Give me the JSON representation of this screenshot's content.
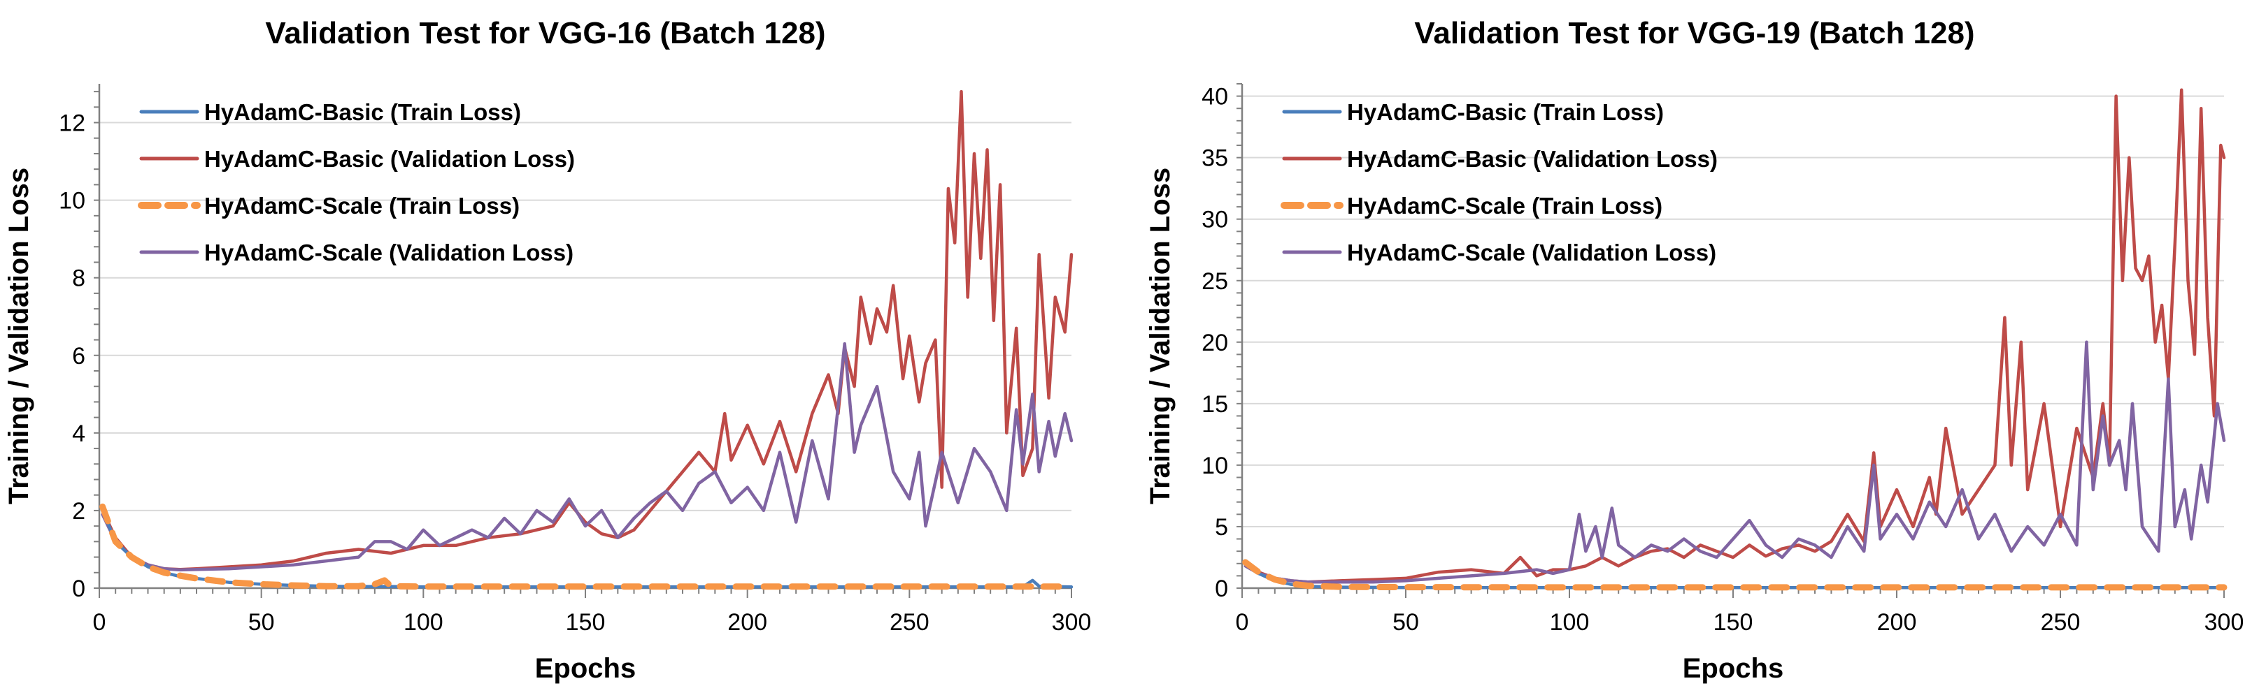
{
  "chart_data": [
    {
      "type": "line",
      "title": "Validation Test for VGG-16 (Batch 128)",
      "xlabel": "Epochs",
      "ylabel": "Training / Validation Loss",
      "xlim": [
        0,
        300
      ],
      "ylim": [
        0,
        13
      ],
      "xticks": [
        0,
        50,
        100,
        150,
        200,
        250,
        300
      ],
      "yticks": [
        0,
        2,
        4,
        6,
        8,
        10,
        12
      ],
      "xtick_labels": [
        "0",
        "50",
        "100",
        "150",
        "200",
        "250",
        "300"
      ],
      "ytick_labels": [
        "0",
        "2",
        "4",
        "6",
        "8",
        "10",
        "12"
      ],
      "grid": true,
      "legend_position": "top-left",
      "series": [
        {
          "name": "HyAdamC-Basic (Train Loss)",
          "color": "#4a7ebb",
          "style": "solid",
          "x": [
            1,
            5,
            10,
            15,
            20,
            25,
            30,
            40,
            50,
            60,
            70,
            80,
            90,
            100,
            150,
            200,
            250,
            285,
            288,
            290,
            300
          ],
          "y": [
            2.0,
            1.2,
            0.8,
            0.55,
            0.4,
            0.3,
            0.25,
            0.15,
            0.1,
            0.07,
            0.05,
            0.04,
            0.04,
            0.03,
            0.03,
            0.03,
            0.03,
            0.03,
            0.2,
            0.05,
            0.03
          ]
        },
        {
          "name": "HyAdamC-Basic (Validation Loss)",
          "color": "#be4b48",
          "style": "solid",
          "x": [
            1,
            5,
            10,
            15,
            20,
            25,
            30,
            40,
            50,
            60,
            70,
            80,
            90,
            100,
            110,
            120,
            130,
            140,
            145,
            150,
            155,
            160,
            165,
            170,
            175,
            180,
            185,
            190,
            193,
            195,
            200,
            205,
            210,
            215,
            220,
            225,
            228,
            230,
            233,
            235,
            238,
            240,
            243,
            245,
            248,
            250,
            253,
            255,
            258,
            260,
            262,
            264,
            266,
            268,
            270,
            272,
            274,
            276,
            278,
            280,
            283,
            285,
            288,
            290,
            293,
            295,
            298,
            300
          ],
          "y": [
            2.0,
            1.3,
            0.8,
            0.6,
            0.5,
            0.48,
            0.5,
            0.55,
            0.6,
            0.7,
            0.9,
            1.0,
            0.9,
            1.1,
            1.1,
            1.3,
            1.4,
            1.6,
            2.2,
            1.7,
            1.4,
            1.3,
            1.5,
            2.0,
            2.5,
            3.0,
            3.5,
            3.0,
            4.5,
            3.3,
            4.2,
            3.2,
            4.3,
            3.0,
            4.5,
            5.5,
            4.5,
            6.2,
            5.2,
            7.5,
            6.3,
            7.2,
            6.6,
            7.8,
            5.4,
            6.5,
            4.8,
            5.8,
            6.4,
            2.6,
            10.3,
            8.9,
            12.8,
            7.5,
            11.2,
            8.5,
            11.3,
            6.9,
            10.4,
            4.0,
            6.7,
            2.9,
            3.6,
            8.6,
            4.9,
            7.5,
            6.6,
            8.6
          ]
        },
        {
          "name": "HyAdamC-Scale (Train Loss)",
          "color": "#f79646",
          "style": "dashed",
          "x": [
            1,
            5,
            10,
            15,
            20,
            25,
            30,
            40,
            50,
            60,
            70,
            80,
            85,
            88,
            90,
            100,
            150,
            200,
            250,
            300
          ],
          "y": [
            2.1,
            1.2,
            0.8,
            0.55,
            0.4,
            0.32,
            0.25,
            0.15,
            0.1,
            0.07,
            0.05,
            0.05,
            0.1,
            0.2,
            0.05,
            0.04,
            0.04,
            0.04,
            0.04,
            0.04
          ]
        },
        {
          "name": "HyAdamC-Scale (Validation Loss)",
          "color": "#8064a2",
          "style": "solid",
          "x": [
            1,
            5,
            10,
            15,
            20,
            25,
            30,
            40,
            50,
            60,
            70,
            80,
            85,
            90,
            95,
            100,
            105,
            110,
            115,
            120,
            125,
            130,
            135,
            140,
            145,
            150,
            155,
            160,
            165,
            170,
            175,
            180,
            185,
            190,
            195,
            200,
            205,
            210,
            215,
            220,
            225,
            230,
            233,
            235,
            240,
            245,
            250,
            253,
            255,
            260,
            265,
            270,
            275,
            280,
            283,
            285,
            288,
            290,
            293,
            295,
            298,
            300
          ],
          "y": [
            1.9,
            1.2,
            0.8,
            0.6,
            0.5,
            0.47,
            0.48,
            0.5,
            0.55,
            0.6,
            0.7,
            0.8,
            1.2,
            1.2,
            1.0,
            1.5,
            1.1,
            1.3,
            1.5,
            1.3,
            1.8,
            1.4,
            2.0,
            1.7,
            2.3,
            1.6,
            2.0,
            1.3,
            1.8,
            2.2,
            2.5,
            2.0,
            2.7,
            3.0,
            2.2,
            2.6,
            2.0,
            3.5,
            1.7,
            3.8,
            2.3,
            6.3,
            3.5,
            4.2,
            5.2,
            3.0,
            2.3,
            3.5,
            1.6,
            3.5,
            2.2,
            3.6,
            3.0,
            2.0,
            4.6,
            3.2,
            5.0,
            3.0,
            4.3,
            3.4,
            4.5,
            3.8
          ]
        }
      ]
    },
    {
      "type": "line",
      "title": "Validation Test for VGG-19 (Batch 128)",
      "xlabel": "Epochs",
      "ylabel": "Training / Validation Loss",
      "xlim": [
        0,
        300
      ],
      "ylim": [
        0,
        41
      ],
      "xticks": [
        0,
        50,
        100,
        150,
        200,
        250,
        300
      ],
      "yticks": [
        0,
        5,
        10,
        15,
        20,
        25,
        30,
        35,
        40
      ],
      "xtick_labels": [
        "0",
        "50",
        "100",
        "150",
        "200",
        "250",
        "300"
      ],
      "ytick_labels": [
        "0",
        "5",
        "10",
        "15",
        "20",
        "25",
        "30",
        "35",
        "40"
      ],
      "grid": true,
      "legend_position": "top-left",
      "series": [
        {
          "name": "HyAdamC-Basic (Train Loss)",
          "color": "#4a7ebb",
          "style": "solid",
          "x": [
            1,
            5,
            10,
            15,
            20,
            30,
            50,
            100,
            150,
            200,
            250,
            300
          ],
          "y": [
            2.0,
            1.2,
            0.6,
            0.3,
            0.15,
            0.08,
            0.05,
            0.04,
            0.04,
            0.04,
            0.04,
            0.04
          ]
        },
        {
          "name": "HyAdamC-Basic (Validation Loss)",
          "color": "#be4b48",
          "style": "solid",
          "x": [
            1,
            5,
            10,
            15,
            20,
            30,
            40,
            50,
            60,
            70,
            80,
            85,
            90,
            95,
            100,
            105,
            110,
            115,
            120,
            125,
            130,
            135,
            140,
            145,
            150,
            155,
            160,
            165,
            170,
            175,
            180,
            185,
            190,
            193,
            195,
            200,
            205,
            210,
            212,
            215,
            220,
            225,
            230,
            233,
            235,
            238,
            240,
            245,
            250,
            255,
            260,
            263,
            265,
            267,
            269,
            271,
            273,
            275,
            277,
            279,
            281,
            283,
            285,
            287,
            289,
            291,
            293,
            295,
            297,
            299,
            300
          ],
          "y": [
            2.0,
            1.3,
            0.8,
            0.6,
            0.5,
            0.6,
            0.7,
            0.8,
            1.3,
            1.5,
            1.2,
            2.5,
            1.0,
            1.5,
            1.5,
            1.8,
            2.5,
            1.8,
            2.5,
            3.0,
            3.2,
            2.5,
            3.5,
            3.0,
            2.5,
            3.5,
            2.6,
            3.2,
            3.5,
            3.0,
            3.8,
            6.0,
            3.8,
            11.0,
            5.0,
            8.0,
            5.0,
            9.0,
            6.0,
            13.0,
            6.0,
            8.0,
            10.0,
            22.0,
            10.0,
            20.0,
            8.0,
            15.0,
            5.0,
            13.0,
            9.0,
            15.0,
            10.0,
            40.0,
            25.0,
            35.0,
            26.0,
            25.0,
            27.0,
            20.0,
            23.0,
            17.0,
            28.0,
            40.5,
            25.0,
            19.0,
            39.0,
            22.0,
            14.0,
            36.0,
            35.0
          ]
        },
        {
          "name": "HyAdamC-Scale (Train Loss)",
          "color": "#f79646",
          "style": "dashed",
          "x": [
            1,
            5,
            10,
            15,
            20,
            30,
            50,
            100,
            150,
            200,
            250,
            300
          ],
          "y": [
            2.1,
            1.3,
            0.7,
            0.35,
            0.2,
            0.1,
            0.08,
            0.06,
            0.06,
            0.06,
            0.06,
            0.06
          ]
        },
        {
          "name": "HyAdamC-Scale (Validation Loss)",
          "color": "#8064a2",
          "style": "solid",
          "x": [
            1,
            5,
            10,
            15,
            20,
            30,
            40,
            50,
            60,
            70,
            80,
            90,
            95,
            100,
            103,
            105,
            108,
            110,
            113,
            115,
            120,
            125,
            130,
            135,
            140,
            145,
            150,
            155,
            160,
            165,
            170,
            175,
            180,
            185,
            190,
            193,
            195,
            200,
            205,
            210,
            215,
            220,
            225,
            230,
            235,
            240,
            245,
            250,
            255,
            258,
            260,
            263,
            265,
            268,
            270,
            272,
            275,
            280,
            283,
            285,
            288,
            290,
            293,
            295,
            298,
            300
          ],
          "y": [
            1.8,
            1.2,
            0.8,
            0.6,
            0.5,
            0.5,
            0.5,
            0.6,
            0.8,
            1.0,
            1.2,
            1.5,
            1.2,
            1.5,
            6.0,
            3.0,
            5.0,
            2.5,
            6.5,
            3.5,
            2.5,
            3.5,
            3.0,
            4.0,
            3.0,
            2.5,
            4.0,
            5.5,
            3.5,
            2.5,
            4.0,
            3.5,
            2.5,
            5.0,
            3.0,
            10.0,
            4.0,
            6.0,
            4.0,
            7.0,
            5.0,
            8.0,
            4.0,
            6.0,
            3.0,
            5.0,
            3.5,
            6.0,
            3.5,
            20.0,
            8.0,
            14.0,
            10.0,
            12.0,
            8.0,
            15.0,
            5.0,
            3.0,
            17.0,
            5.0,
            8.0,
            4.0,
            10.0,
            7.0,
            15.0,
            12.0
          ]
        }
      ]
    }
  ]
}
